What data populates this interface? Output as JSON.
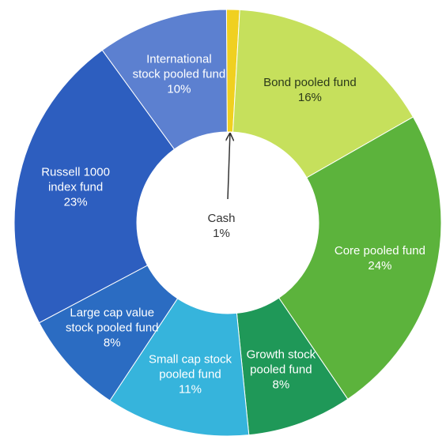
{
  "chart_data": {
    "type": "donut",
    "categories": [
      "Cash",
      "Bond pooled fund",
      "Core pooled fund",
      "Growth stock pooled fund",
      "Small cap stock pooled fund",
      "Large cap value stock pooled fund",
      "Russell 1000 index fund",
      "International stock pooled fund"
    ],
    "values": [
      1,
      16,
      24,
      8,
      11,
      8,
      23,
      10
    ],
    "value_labels": [
      "1%",
      "16%",
      "24%",
      "8%",
      "11%",
      "8%",
      "23%",
      "10%"
    ],
    "colors": [
      "#f0d020",
      "#c6e05c",
      "#5cb33c",
      "#1f9858",
      "#36b4dc",
      "#2b6cc2",
      "#2d5ebf",
      "#5c80d0"
    ]
  }
}
